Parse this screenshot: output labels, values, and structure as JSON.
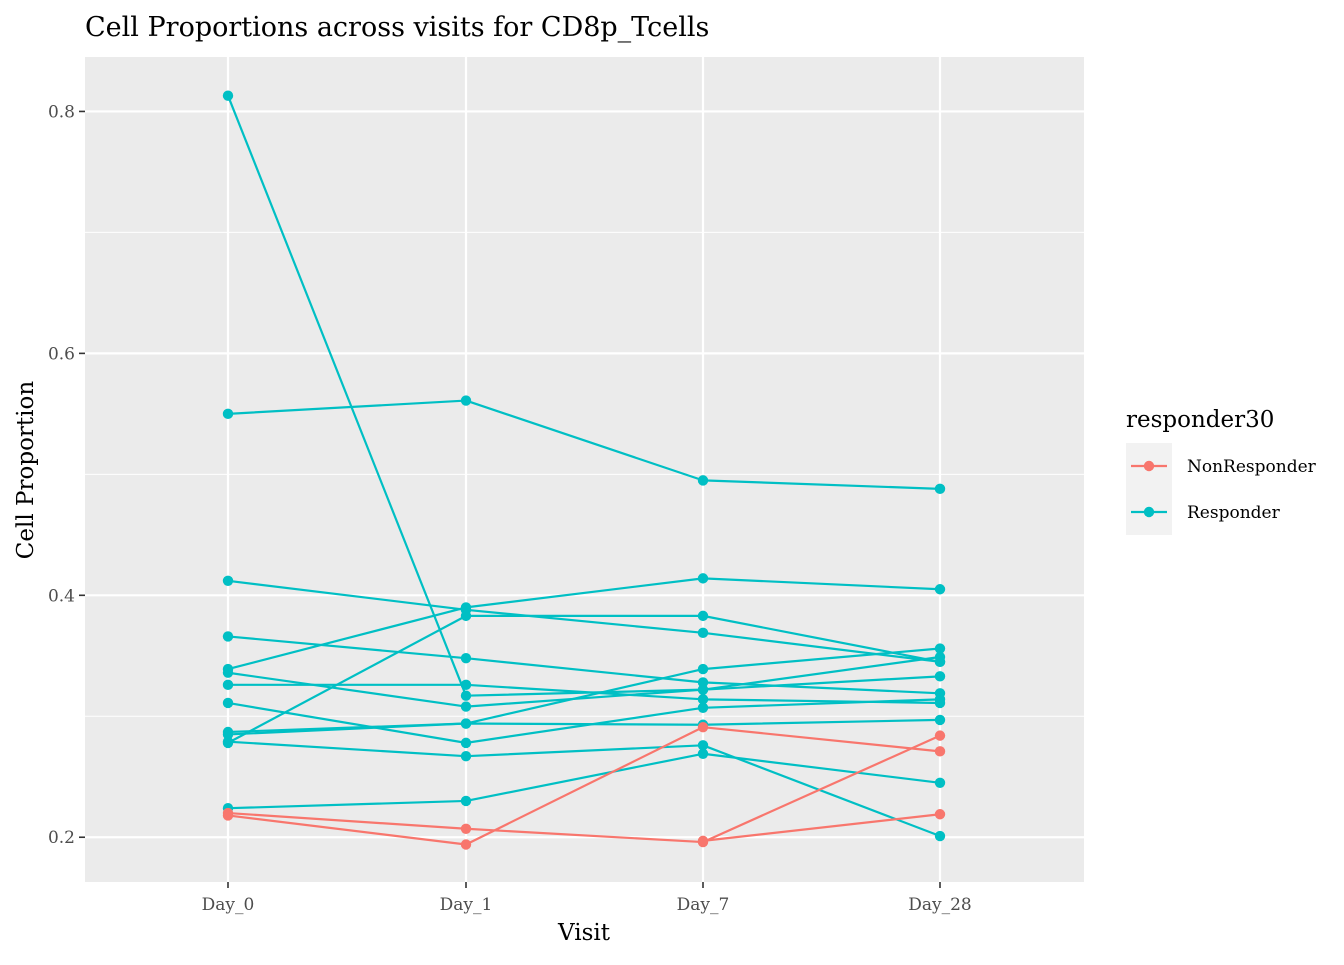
{
  "chart_data": {
    "type": "line",
    "title": "Cell Proportions across visits for CD8p_Tcells",
    "xlabel": "Visit",
    "ylabel": "Cell Proportion",
    "categories": [
      "Day_0",
      "Day_1",
      "Day_7",
      "Day_28"
    ],
    "ylim": [
      0.163,
      0.845
    ],
    "yticks": [
      0.2,
      0.4,
      0.6,
      0.8
    ],
    "ytick_labels": [
      "0.2",
      "0.4",
      "0.6",
      "0.8"
    ],
    "grid": true,
    "legend": {
      "title": "responder30",
      "placement": "right",
      "entries": [
        {
          "label": "NonResponder",
          "color": "#F8766D"
        },
        {
          "label": "Responder",
          "color": "#00BFC4"
        }
      ]
    },
    "colors": {
      "NonResponder": "#F8766D",
      "Responder": "#00BFC4",
      "panel": "#EBEBEB",
      "grid": "#FFFFFF"
    },
    "series": [
      {
        "group": "Responder",
        "values": [
          0.813,
          0.317,
          0.322,
          0.349
        ]
      },
      {
        "group": "Responder",
        "values": [
          0.55,
          0.561,
          0.495,
          0.488
        ]
      },
      {
        "group": "Responder",
        "values": [
          0.412,
          0.388,
          0.369,
          0.345
        ]
      },
      {
        "group": "Responder",
        "values": [
          0.366,
          0.348,
          0.328,
          0.319
        ]
      },
      {
        "group": "Responder",
        "values": [
          0.339,
          0.39,
          0.414,
          0.405
        ]
      },
      {
        "group": "Responder",
        "values": [
          0.336,
          0.308,
          0.322,
          0.333
        ]
      },
      {
        "group": "Responder",
        "values": [
          0.326,
          0.326,
          0.314,
          0.311
        ]
      },
      {
        "group": "Responder",
        "values": [
          0.311,
          0.278,
          0.307,
          0.314
        ]
      },
      {
        "group": "Responder",
        "values": [
          0.287,
          0.294,
          0.339,
          0.356
        ]
      },
      {
        "group": "Responder",
        "values": [
          0.285,
          0.294,
          0.293,
          0.297
        ]
      },
      {
        "group": "Responder",
        "values": [
          0.278,
          0.383,
          0.383,
          0.345
        ]
      },
      {
        "group": "Responder",
        "values": [
          0.279,
          0.267,
          0.276,
          0.201
        ]
      },
      {
        "group": "Responder",
        "values": [
          0.224,
          0.23,
          0.269,
          0.245
        ]
      },
      {
        "group": "NonResponder",
        "values": [
          0.22,
          0.207,
          0.196,
          0.284
        ]
      },
      {
        "group": "NonResponder",
        "values": [
          0.218,
          0.194,
          0.291,
          0.271
        ]
      },
      {
        "group": "NonResponder",
        "values": [
          null,
          null,
          0.197,
          0.219
        ]
      }
    ]
  }
}
